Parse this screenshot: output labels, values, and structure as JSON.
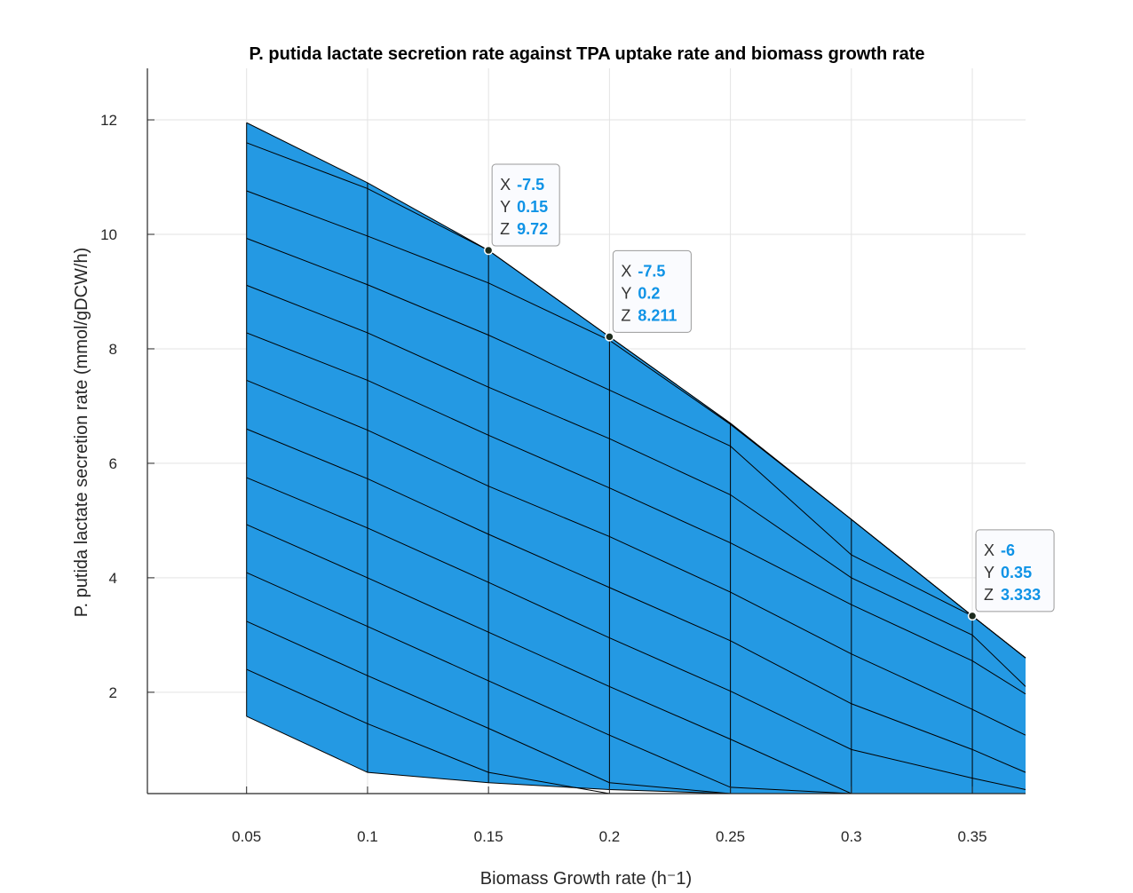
{
  "chart_data": {
    "type": "surface",
    "title": "P. putida lactate secretion rate against TPA uptake rate and biomass growth rate",
    "xlabel": "Biomass Growth rate (h⁻1)",
    "ylabel": "P. putida lactate secretion rate (mmol/gDCW/h)",
    "xlim": [
      0.009,
      0.372
    ],
    "ylim": [
      0.23,
      12.9
    ],
    "xticks": [
      0.05,
      0.1,
      0.15,
      0.2,
      0.25,
      0.3,
      0.35
    ],
    "xtick_labels": [
      "0.05",
      "0.1",
      "0.15",
      "0.2",
      "0.25",
      "0.3",
      "0.35"
    ],
    "yticks": [
      2,
      4,
      6,
      8,
      10,
      12
    ],
    "ytick_labels": [
      "2",
      "4",
      "6",
      "8",
      "10",
      "12"
    ],
    "grid": true,
    "surface_color": "#2499E3",
    "edge_color": "#000000",
    "growth_rates": [
      0.05,
      0.1,
      0.15,
      0.2,
      0.25,
      0.3,
      0.35,
      0.372
    ],
    "lines": [
      {
        "name": "top",
        "values": [
          11.95,
          10.9,
          9.72,
          8.211,
          6.7,
          5.02,
          3.333,
          2.6
        ]
      },
      {
        "values": [
          11.6,
          10.8,
          9.72,
          8.211,
          6.7,
          5.02,
          3.333,
          2.6
        ]
      },
      {
        "values": [
          10.76,
          9.97,
          9.15,
          8.15,
          6.68,
          5.02,
          3.333,
          2.6
        ]
      },
      {
        "values": [
          9.93,
          9.12,
          8.24,
          7.28,
          6.3,
          4.4,
          3.333,
          2.6
        ]
      },
      {
        "values": [
          9.11,
          8.28,
          7.33,
          6.43,
          5.45,
          4.0,
          3.0,
          2.1
        ]
      },
      {
        "values": [
          8.28,
          7.45,
          6.49,
          5.57,
          4.61,
          3.53,
          2.55,
          1.97
        ]
      },
      {
        "values": [
          7.45,
          6.58,
          5.6,
          4.72,
          3.75,
          2.67,
          1.7,
          1.25
        ]
      },
      {
        "values": [
          6.6,
          5.73,
          4.76,
          3.83,
          2.9,
          1.8,
          1.0,
          0.6
        ]
      },
      {
        "values": [
          5.75,
          4.87,
          3.92,
          2.95,
          2.02,
          1.0,
          0.5,
          0.3
        ]
      },
      {
        "values": [
          4.93,
          4.0,
          3.05,
          2.1,
          1.18,
          0.23,
          0.23,
          0.23
        ]
      },
      {
        "values": [
          4.09,
          3.15,
          2.2,
          1.25,
          0.34,
          0.23,
          0.23,
          0.23
        ]
      },
      {
        "values": [
          3.24,
          2.29,
          1.37,
          0.42,
          0.23,
          0.23,
          0.23,
          0.23
        ]
      },
      {
        "values": [
          2.4,
          1.45,
          0.6,
          0.23,
          0.23,
          0.23,
          0.23,
          0.23
        ]
      },
      {
        "name": "bottom",
        "values": [
          1.58,
          0.6,
          0.42,
          0.3,
          0.23,
          0.23,
          0.23,
          0.23
        ]
      }
    ],
    "datatips": [
      {
        "X": "-7.5",
        "Y": "0.15",
        "Z": "9.72",
        "point": [
          0.15,
          9.72
        ]
      },
      {
        "X": "-7.5",
        "Y": "0.2",
        "Z": "8.211",
        "point": [
          0.2,
          8.211
        ]
      },
      {
        "X": "-6",
        "Y": "0.35",
        "Z": "3.333",
        "point": [
          0.35,
          3.333
        ]
      }
    ],
    "tip_value_color": "#0F93E6"
  }
}
